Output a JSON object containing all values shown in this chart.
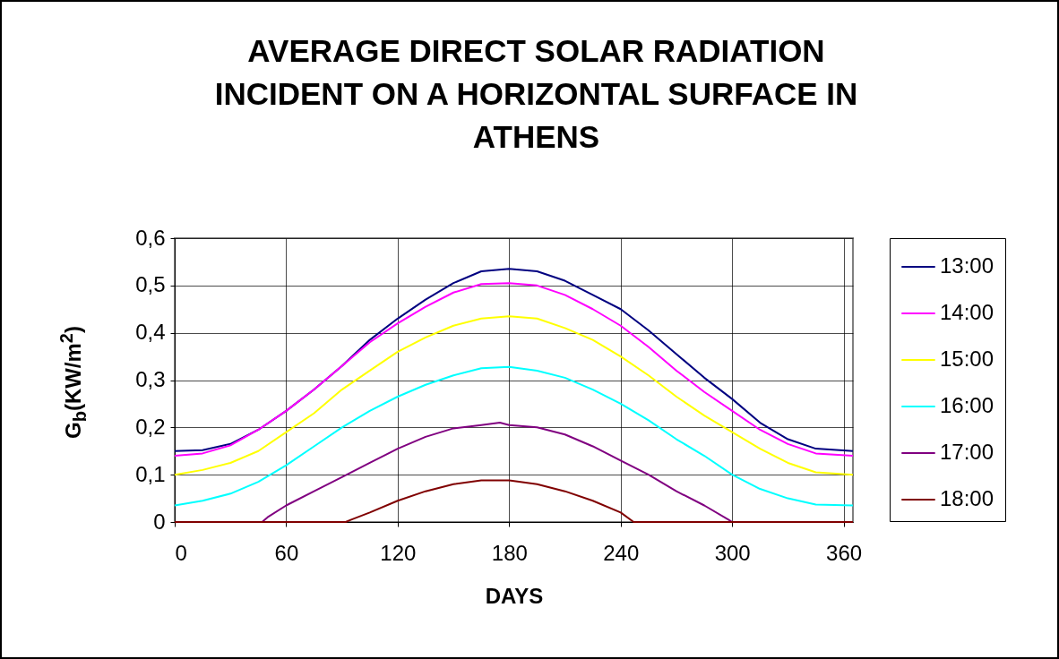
{
  "chart_data": {
    "type": "line",
    "title": "AVERAGE DIRECT SOLAR RADIATION INCIDENT ON A HORIZONTAL SURFACE IN ATHENS",
    "xlabel": "DAYS",
    "ylabel": "G$_{b}$(KW/m$^{2}$)",
    "xlim": [
      0,
      365
    ],
    "xticks": [
      0,
      60,
      120,
      180,
      240,
      300,
      360
    ],
    "ylim": [
      0,
      0.6
    ],
    "yticks": [
      0,
      {
        "value": 0.1,
        "label": "0,1"
      },
      {
        "value": 0.2,
        "label": "0,2"
      },
      {
        "value": 0.3,
        "label": "0,3"
      },
      {
        "value": 0.4,
        "label": "0,4"
      },
      {
        "value": 0.5,
        "label": "0,5"
      },
      {
        "value": 0.6,
        "label": "0,6"
      }
    ],
    "grid": true,
    "legend": "right",
    "marker": "none",
    "line_style": "solid",
    "series": [
      {
        "name": "13:00",
        "color": "#000080",
        "x": [
          0,
          15,
          30,
          45,
          60,
          75,
          90,
          105,
          120,
          135,
          150,
          165,
          180,
          195,
          210,
          225,
          240,
          255,
          270,
          285,
          300,
          315,
          330,
          345,
          365
        ],
        "values": [
          0.15,
          0.152,
          0.165,
          0.195,
          0.235,
          0.28,
          0.33,
          0.385,
          0.43,
          0.47,
          0.505,
          0.53,
          0.535,
          0.53,
          0.51,
          0.48,
          0.45,
          0.405,
          0.355,
          0.305,
          0.26,
          0.21,
          0.175,
          0.155,
          0.15
        ]
      },
      {
        "name": "14:00",
        "color": "#ff00ff",
        "x": [
          0,
          15,
          30,
          45,
          60,
          75,
          90,
          105,
          120,
          135,
          150,
          165,
          180,
          195,
          210,
          225,
          240,
          255,
          270,
          285,
          300,
          315,
          330,
          345,
          365
        ],
        "values": [
          0.14,
          0.145,
          0.162,
          0.195,
          0.235,
          0.28,
          0.33,
          0.38,
          0.42,
          0.455,
          0.485,
          0.503,
          0.505,
          0.5,
          0.48,
          0.45,
          0.415,
          0.37,
          0.32,
          0.275,
          0.235,
          0.195,
          0.165,
          0.145,
          0.14
        ]
      },
      {
        "name": "15:00",
        "color": "#ffff00",
        "x": [
          0,
          15,
          30,
          45,
          60,
          75,
          90,
          105,
          120,
          135,
          150,
          165,
          180,
          195,
          210,
          225,
          240,
          255,
          270,
          285,
          300,
          315,
          330,
          345,
          365
        ],
        "values": [
          0.1,
          0.11,
          0.125,
          0.15,
          0.19,
          0.23,
          0.28,
          0.32,
          0.36,
          0.39,
          0.415,
          0.43,
          0.435,
          0.43,
          0.41,
          0.385,
          0.35,
          0.31,
          0.265,
          0.225,
          0.19,
          0.155,
          0.125,
          0.105,
          0.1
        ]
      },
      {
        "name": "16:00",
        "color": "#00ffff",
        "x": [
          0,
          15,
          30,
          45,
          60,
          75,
          90,
          105,
          120,
          135,
          150,
          165,
          180,
          195,
          210,
          225,
          240,
          255,
          270,
          285,
          300,
          315,
          330,
          345,
          365
        ],
        "values": [
          0.035,
          0.045,
          0.06,
          0.085,
          0.12,
          0.16,
          0.2,
          0.235,
          0.265,
          0.29,
          0.31,
          0.325,
          0.328,
          0.32,
          0.305,
          0.28,
          0.25,
          0.215,
          0.175,
          0.14,
          0.1,
          0.07,
          0.05,
          0.037,
          0.035
        ]
      },
      {
        "name": "17:00",
        "color": "#800080",
        "x": [
          0,
          47,
          50,
          60,
          75,
          90,
          105,
          120,
          135,
          150,
          165,
          175,
          180,
          195,
          210,
          225,
          240,
          255,
          270,
          285,
          298,
          300,
          365
        ],
        "values": [
          0,
          0,
          0.01,
          0.035,
          0.065,
          0.095,
          0.125,
          0.155,
          0.18,
          0.198,
          0.205,
          0.21,
          0.205,
          0.2,
          0.185,
          0.16,
          0.13,
          0.1,
          0.065,
          0.035,
          0.005,
          0,
          0
        ]
      },
      {
        "name": "18:00",
        "color": "#800000",
        "x": [
          0,
          92,
          95,
          105,
          120,
          135,
          150,
          165,
          180,
          195,
          210,
          225,
          240,
          247,
          365
        ],
        "values": [
          0,
          0,
          0.005,
          0.02,
          0.045,
          0.065,
          0.08,
          0.088,
          0.088,
          0.08,
          0.065,
          0.045,
          0.02,
          0,
          0
        ]
      }
    ]
  }
}
